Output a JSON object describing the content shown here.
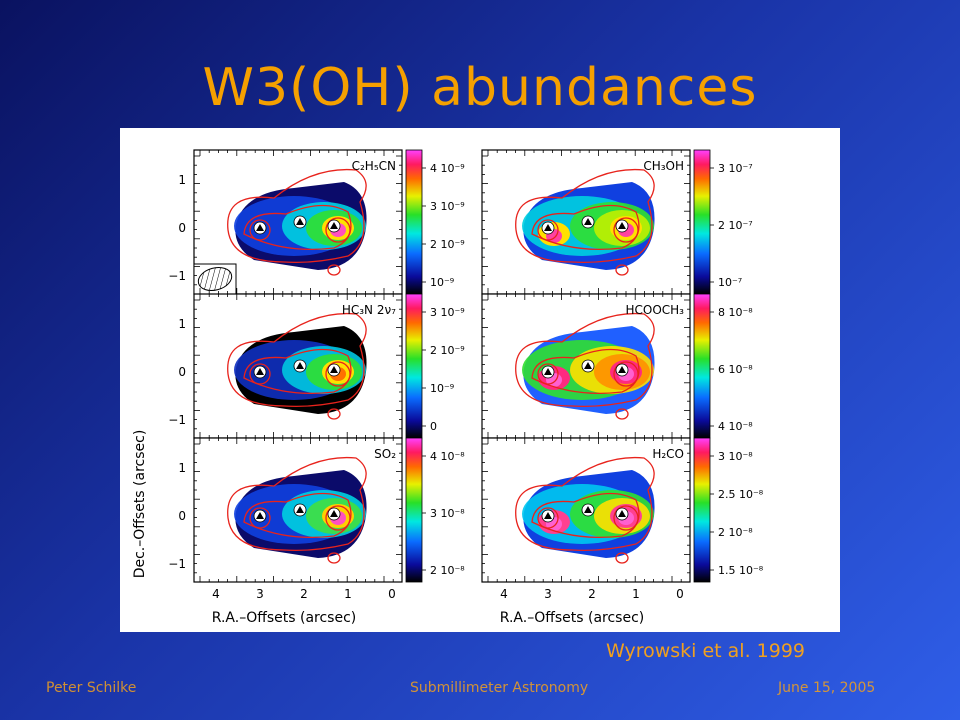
{
  "slide": {
    "title": "W3(OH) abundances",
    "caption": "Wyrowski et al. 1999",
    "footer_left": "Peter Schilke",
    "footer_center": "Submillimeter Astronomy",
    "footer_right": "June 15, 2005"
  },
  "figure": {
    "xlabel": "R.A.–Offsets (arcsec)",
    "ylabel": "Dec.–Offsets (arcsec)",
    "x_ticks": [
      "4",
      "3",
      "2",
      "1",
      "0"
    ],
    "y_ticks": [
      "1",
      "0",
      "−1"
    ],
    "panels": [
      {
        "molecule": "C₂H₅CN",
        "colorbar": [
          "4 10⁻⁹",
          "3 10⁻⁹",
          "2 10⁻⁹",
          "10⁻⁹"
        ]
      },
      {
        "molecule": "CH₃OH",
        "colorbar": [
          "3 10⁻⁷",
          "2 10⁻⁷",
          "10⁻⁷"
        ]
      },
      {
        "molecule": "HC₃N 2ν₇",
        "colorbar": [
          "3 10⁻⁹",
          "2 10⁻⁹",
          "10⁻⁹",
          "0"
        ]
      },
      {
        "molecule": "HCOOCH₃",
        "colorbar": [
          "8 10⁻⁸",
          "6 10⁻⁸",
          "4 10⁻⁸"
        ]
      },
      {
        "molecule": "SO₂",
        "colorbar": [
          "4 10⁻⁸",
          "3 10⁻⁸",
          "2 10⁻⁸"
        ]
      },
      {
        "molecule": "H₂CO",
        "colorbar": [
          "3 10⁻⁸",
          "2.5 10⁻⁸",
          "2 10⁻⁸",
          "1.5 10⁻⁸"
        ]
      }
    ]
  },
  "colors": {
    "title": "#f5a000",
    "footer": "#f0a020",
    "contour": "#e8231c"
  }
}
